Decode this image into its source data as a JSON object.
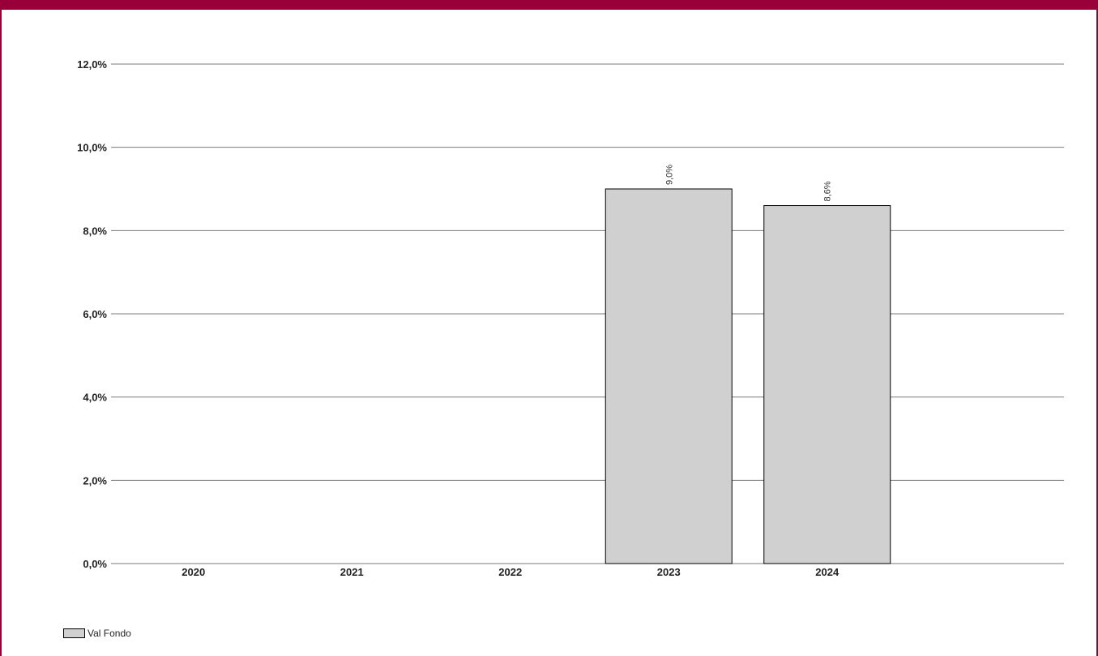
{
  "chart_data": {
    "type": "bar",
    "categories": [
      "2020",
      "2021",
      "2022",
      "2023",
      "2024"
    ],
    "series": [
      {
        "name": "Val Fondo",
        "values": [
          null,
          null,
          null,
          9.0,
          8.6
        ]
      }
    ],
    "data_labels": [
      "",
      "",
      "",
      "9,0%",
      "8,6%"
    ],
    "yticks": [
      "0,0%",
      "2,0%",
      "4,0%",
      "6,0%",
      "8,0%",
      "10,0%",
      "12,0%"
    ],
    "ylim": [
      0,
      12
    ],
    "ystep": 2,
    "grid": true,
    "legend_position": "bottom-left",
    "colors": {
      "frame": "#99003a",
      "bar_fill": "#d0d0d0",
      "bar_stroke": "#000000",
      "grid": "#7a7a7a"
    }
  }
}
